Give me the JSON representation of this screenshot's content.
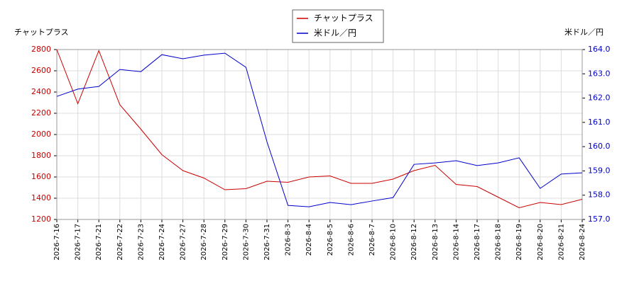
{
  "chart_data": {
    "type": "line",
    "y_label": "チャットプラス",
    "y2_label": "米ドル／円",
    "categories": [
      "2026-7-16",
      "2026-7-17",
      "2026-7-21",
      "2026-7-22",
      "2026-7-23",
      "2026-7-24",
      "2026-7-27",
      "2026-7-28",
      "2026-7-29",
      "2026-7-30",
      "2026-7-31",
      "2026-8-3",
      "2026-8-4",
      "2026-8-5",
      "2026-8-6",
      "2026-8-7",
      "2026-8-10",
      "2026-8-12",
      "2026-8-13",
      "2026-8-14",
      "2026-8-17",
      "2026-8-18",
      "2026-8-19",
      "2026-8-20",
      "2026-8-21",
      "2026-8-24"
    ],
    "series": [
      {
        "name": "チャットプラス",
        "color": "#cc0000",
        "axis": "y",
        "values": [
          2800,
          2290,
          2790,
          2280,
          2050,
          1810,
          1660,
          1590,
          1480,
          1490,
          1560,
          1550,
          1600,
          1610,
          1540,
          1540,
          1580,
          1660,
          1710,
          1530,
          1510,
          1410,
          1310,
          1360,
          1340,
          1390
        ]
      },
      {
        "name": "米ドル／円",
        "color": "#0000cc",
        "axis": "y2",
        "values": [
          162.07,
          162.37,
          162.48,
          163.18,
          163.09,
          163.79,
          163.62,
          163.77,
          163.85,
          163.27,
          160.2,
          157.58,
          157.52,
          157.7,
          157.61,
          157.76,
          157.9,
          159.27,
          159.33,
          159.42,
          159.22,
          159.33,
          159.54,
          158.28,
          158.87,
          158.92
        ]
      }
    ],
    "ylim": [
      1200,
      2800
    ],
    "yticks": [
      1200,
      1400,
      1600,
      1800,
      2000,
      2200,
      2400,
      2600,
      2800
    ],
    "y2lim": [
      157,
      164
    ],
    "y2ticks": [
      {
        "value": 157,
        "label": "157.0"
      },
      {
        "value": 158,
        "label": "158.0"
      },
      {
        "value": 159,
        "label": "159.0"
      },
      {
        "value": 160,
        "label": "160.0"
      },
      {
        "value": 161,
        "label": "161.0"
      },
      {
        "value": 162,
        "label": "162.0"
      },
      {
        "value": 163,
        "label": "163.0"
      },
      {
        "value": 164,
        "label": "164.0"
      }
    ],
    "grid": true,
    "legend": "top"
  }
}
